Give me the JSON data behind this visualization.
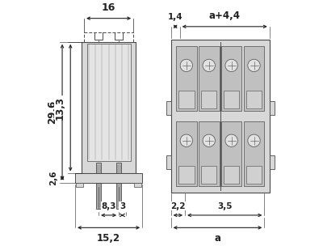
{
  "bg_color": "#ffffff",
  "line_color": "#4a4a4a",
  "light_fill": "#d8d8d8",
  "medium_fill": "#b8b8b8",
  "dark_fill": "#909090",
  "dim_color": "#222222",
  "font_size_dim": 8.5,
  "font_size_label": 7.5
}
